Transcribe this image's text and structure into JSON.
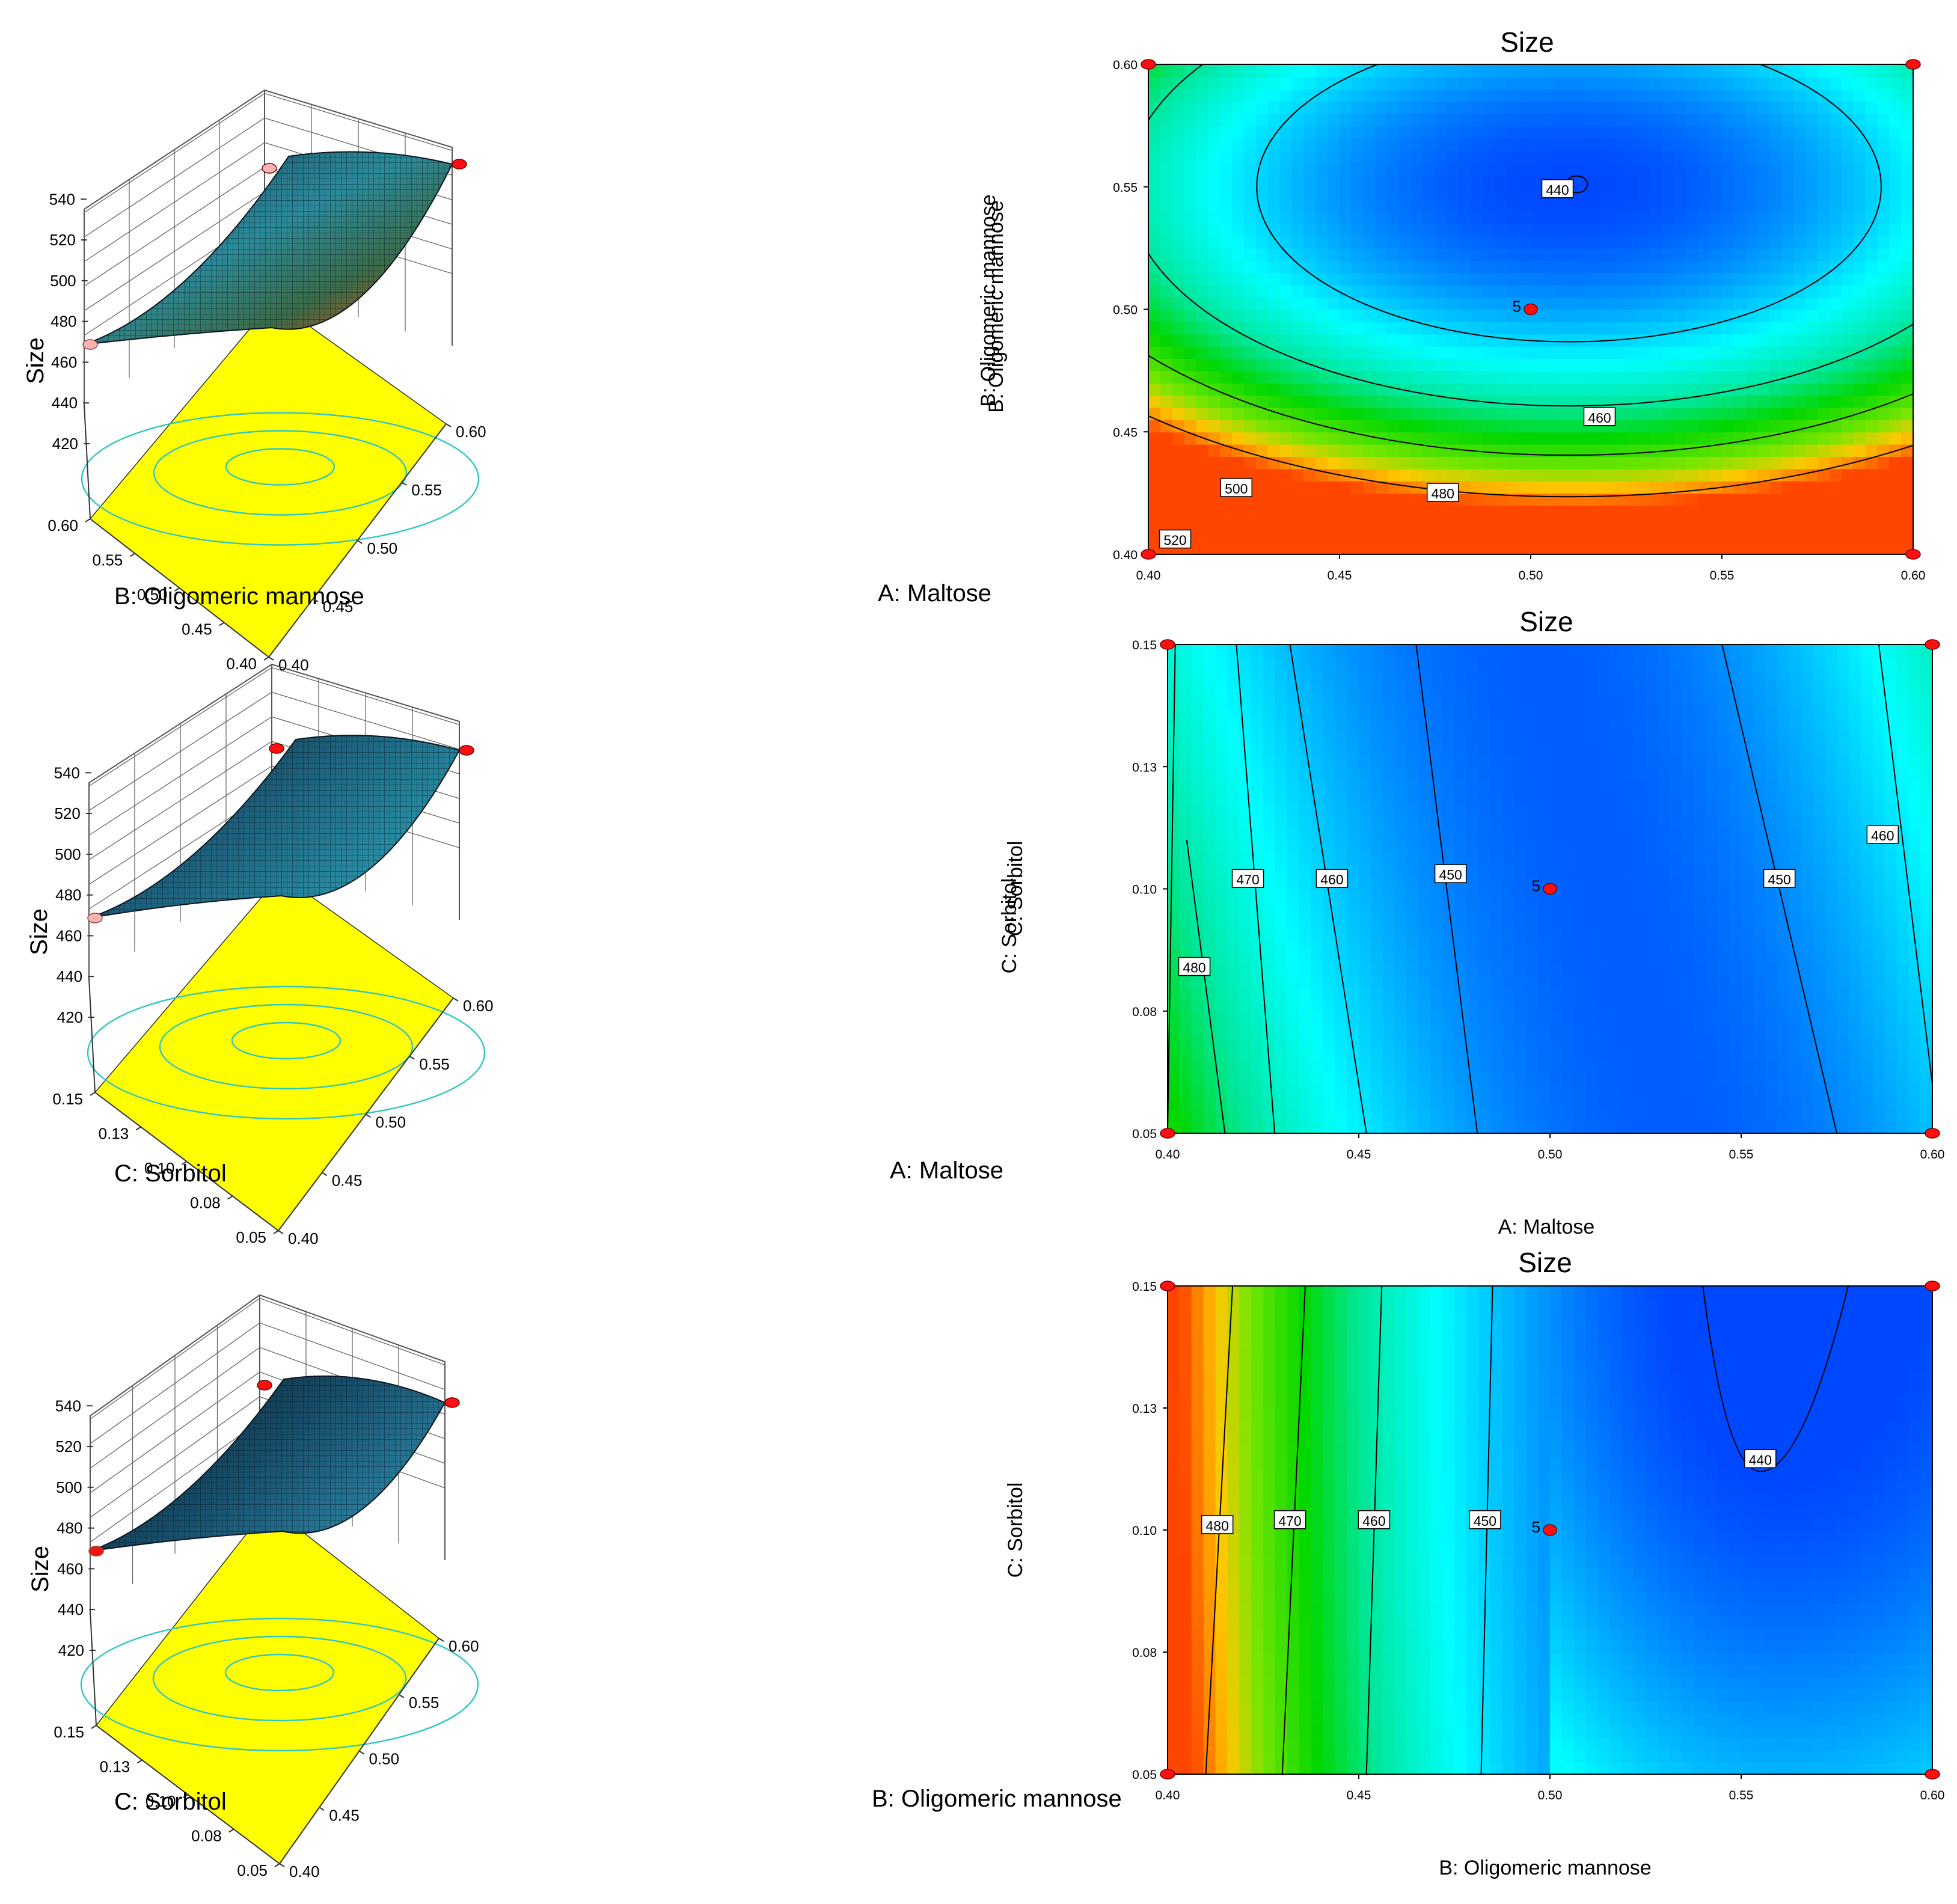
{
  "figure": {
    "surface_colors": {
      "floor": "#ffff00",
      "floor_contour": "#2ec7c0",
      "mesh_line": "#0a1f33",
      "design_point": "#ff1010",
      "design_point_light": "#ffb3b3"
    },
    "contour_colors": {
      "low": "#0050ff",
      "mid": "#00ffff",
      "high": "#00d800",
      "peak": "#ff6000"
    }
  },
  "panels_3d": [
    {
      "id": "ab",
      "type": "surface3d",
      "zlabel": "Size",
      "zticks": [
        "420",
        "440",
        "460",
        "480",
        "500",
        "520",
        "540"
      ],
      "left_axis_label": "B: Oligomeric mannose",
      "left_ticks": [
        "0.60",
        "0.55",
        "0.50",
        "0.45",
        "0.40"
      ],
      "right_axis_label": "A: Maltose",
      "right_ticks": [
        "0.40",
        "0.45",
        "0.50",
        "0.55",
        "0.60"
      ],
      "side_label": "B: Oligomeric mannose"
    },
    {
      "id": "ac",
      "type": "surface3d",
      "zlabel": "Size",
      "zticks": [
        "420",
        "440",
        "460",
        "480",
        "500",
        "520",
        "540"
      ],
      "left_axis_label": "C: Sorbitol",
      "left_ticks": [
        "0.15",
        "0.13",
        "0.10",
        "0.08",
        "0.05"
      ],
      "right_axis_label": "A: Maltose",
      "right_ticks": [
        "0.40",
        "0.45",
        "0.50",
        "0.55",
        "0.60"
      ],
      "side_label": "C: Sorbitol"
    },
    {
      "id": "bc",
      "type": "surface3d",
      "zlabel": "Size",
      "zticks": [
        "420",
        "440",
        "460",
        "480",
        "500",
        "520",
        "540"
      ],
      "left_axis_label": "C: Sorbitol",
      "left_ticks": [
        "0.15",
        "0.13",
        "0.10",
        "0.08",
        "0.05"
      ],
      "right_axis_label": "B: Oligomeric mannose",
      "right_ticks": [
        "0.40",
        "0.45",
        "0.50",
        "0.55",
        "0.60"
      ],
      "side_label": ""
    }
  ],
  "chart_data": [
    {
      "type": "heatmap",
      "title": "Size",
      "xlabel": "",
      "ylabel": "B: Oligomeric mannose",
      "x_ticks": [
        "0.40",
        "0.45",
        "0.50",
        "0.55",
        "0.60"
      ],
      "y_ticks": [
        "0.40",
        "0.45",
        "0.50",
        "0.55",
        "0.60"
      ],
      "xlim": [
        0.4,
        0.6
      ],
      "ylim": [
        0.4,
        0.6
      ],
      "model": {
        "c": 440,
        "x0": 0.51,
        "y0": 0.55,
        "ax": 3000,
        "ay": 5000,
        "axy": 0
      },
      "contour_levels": [
        440,
        460,
        480,
        500,
        520
      ],
      "contour_labels": [
        {
          "text": "440",
          "x": 0.507,
          "y": 0.549
        },
        {
          "text": "460",
          "x": 0.518,
          "y": 0.456
        },
        {
          "text": "480",
          "x": 0.477,
          "y": 0.425
        },
        {
          "text": "500",
          "x": 0.423,
          "y": 0.427
        },
        {
          "text": "520",
          "x": 0.407,
          "y": 0.406
        }
      ],
      "center_point": {
        "x": 0.5,
        "y": 0.5,
        "label": "5"
      },
      "design_points": [
        [
          0.4,
          0.4
        ],
        [
          0.4,
          0.6
        ],
        [
          0.6,
          0.4
        ],
        [
          0.6,
          0.6
        ]
      ],
      "color_range": [
        440,
        525
      ]
    },
    {
      "type": "heatmap",
      "title": "Size",
      "xlabel": "A: Maltose",
      "ylabel": "C: Sorbitol",
      "x_ticks": [
        "0.40",
        "0.45",
        "0.50",
        "0.55",
        "0.60"
      ],
      "y_ticks": [
        "0.05",
        "0.08",
        "0.10",
        "0.13",
        "0.15"
      ],
      "xlim": [
        0.4,
        0.6
      ],
      "ylim": [
        0.05,
        0.15
      ],
      "model": {
        "c": 443,
        "x0": 0.515,
        "y0": 0.1,
        "ax": 3000,
        "ay": 0,
        "axy": 0,
        "by": 200
      },
      "contour_levels": [
        450,
        460,
        470,
        480
      ],
      "contour_labels": [
        {
          "text": "470",
          "x": 0.421,
          "y": 0.102
        },
        {
          "text": "460",
          "x": 0.443,
          "y": 0.102
        },
        {
          "text": "450",
          "x": 0.474,
          "y": 0.103
        },
        {
          "text": "450",
          "x": 0.56,
          "y": 0.102
        },
        {
          "text": "460",
          "x": 0.587,
          "y": 0.111
        },
        {
          "text": "480",
          "x": 0.407,
          "y": 0.084
        }
      ],
      "center_point": {
        "x": 0.5,
        "y": 0.1,
        "label": "5"
      },
      "design_points": [
        [
          0.4,
          0.05
        ],
        [
          0.4,
          0.15
        ],
        [
          0.6,
          0.05
        ],
        [
          0.6,
          0.15
        ]
      ],
      "color_range": [
        440,
        525
      ]
    },
    {
      "type": "heatmap",
      "title": "Size",
      "xlabel": "B: Oligomeric mannose",
      "ylabel": "C: Sorbitol",
      "x_ticks": [
        "0.40",
        "0.45",
        "0.50",
        "0.55",
        "0.60"
      ],
      "y_ticks": [
        "0.05",
        "0.08",
        "0.10",
        "0.13",
        "0.15"
      ],
      "xlim": [
        0.4,
        0.6
      ],
      "ylim": [
        0.05,
        0.15
      ],
      "model": {
        "c": 437,
        "x0": 0.555,
        "y0": 0.15,
        "ax": 5000,
        "ay": 500,
        "axy": 0
      },
      "contour_levels": [
        440,
        450,
        460,
        470,
        480
      ],
      "contour_labels": [
        {
          "text": "440",
          "x": 0.555,
          "y": 0.1145
        },
        {
          "text": "480",
          "x": 0.413,
          "y": 0.101
        },
        {
          "text": "470",
          "x": 0.432,
          "y": 0.102
        },
        {
          "text": "460",
          "x": 0.454,
          "y": 0.102
        },
        {
          "text": "450",
          "x": 0.483,
          "y": 0.102
        }
      ],
      "center_point": {
        "x": 0.5,
        "y": 0.1,
        "label": "5"
      },
      "design_points": [
        [
          0.4,
          0.05
        ],
        [
          0.4,
          0.15
        ],
        [
          0.6,
          0.05
        ],
        [
          0.6,
          0.15
        ]
      ],
      "color_range": [
        440,
        525
      ]
    }
  ]
}
